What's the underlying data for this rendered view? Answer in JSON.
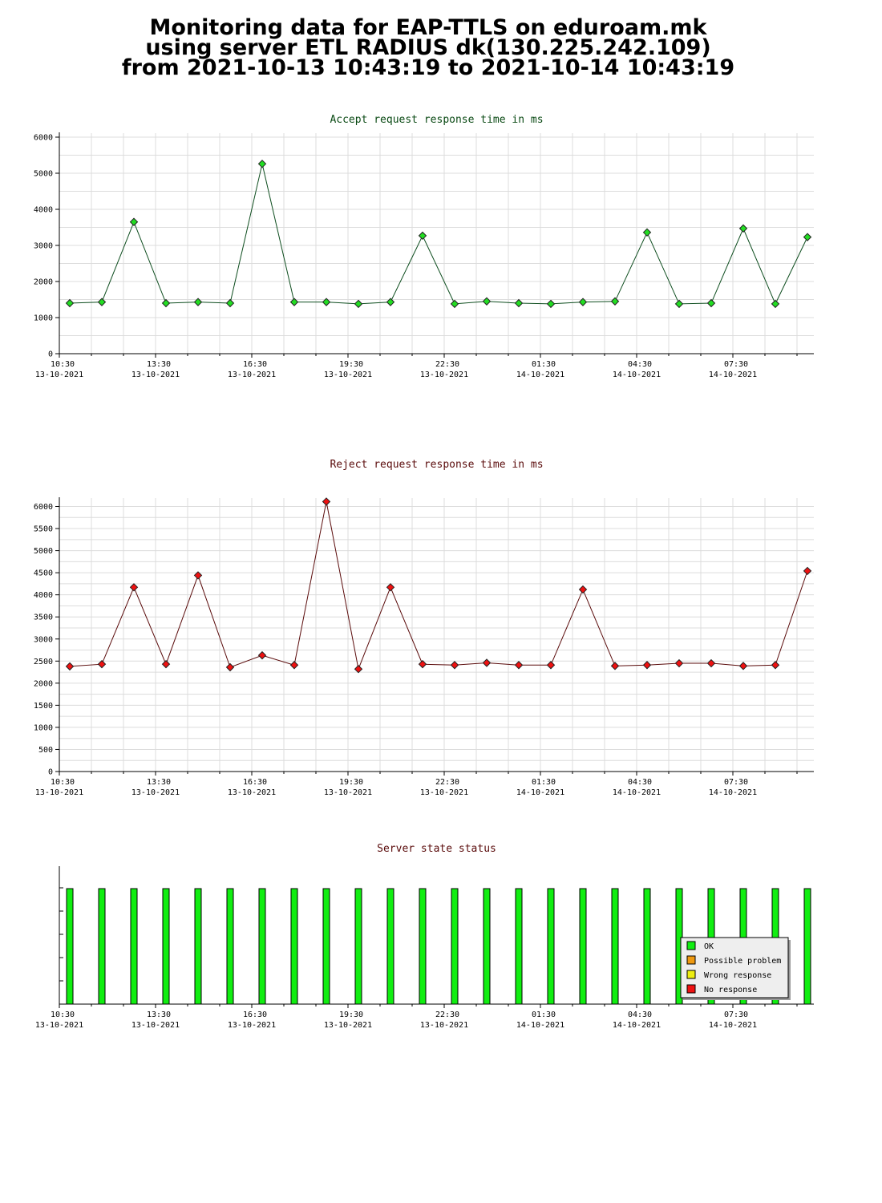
{
  "header": {
    "line1": "Monitoring data for EAP-TTLS on eduroam.mk",
    "line2": "using server ETL RADIUS dk(130.225.242.109)",
    "line3": "from 2021-10-13 10:43:19 to 2021-10-14 10:43:19"
  },
  "colors": {
    "accept_line": "#0d4d1e",
    "accept_marker": "#22dd22",
    "accept_title": "#0a4a14",
    "reject_line": "#5a0b0b",
    "reject_marker": "#ee1111",
    "reject_title": "#5a0b0b",
    "status_ok": "#11ee11",
    "possible_problem": "#ee9911",
    "wrong_response": "#eeee11",
    "no_response": "#ee1111"
  },
  "x_ticks": [
    {
      "time": "10:30",
      "date": "13-10-2021"
    },
    {
      "time": "13:30",
      "date": "13-10-2021"
    },
    {
      "time": "16:30",
      "date": "13-10-2021"
    },
    {
      "time": "19:30",
      "date": "13-10-2021"
    },
    {
      "time": "22:30",
      "date": "13-10-2021"
    },
    {
      "time": "01:30",
      "date": "14-10-2021"
    },
    {
      "time": "04:30",
      "date": "14-10-2021"
    },
    {
      "time": "07:30",
      "date": "14-10-2021"
    }
  ],
  "chart_data": [
    {
      "type": "line",
      "title": "Accept request response time in ms",
      "x": [
        "10:43",
        "11:43",
        "12:43",
        "13:43",
        "14:43",
        "15:43",
        "16:43",
        "17:43",
        "18:43",
        "19:43",
        "20:43",
        "21:43",
        "22:43",
        "23:43",
        "00:43",
        "01:43",
        "02:43",
        "03:43",
        "04:43",
        "05:43",
        "06:43",
        "07:43",
        "08:43",
        "09:43"
      ],
      "values": [
        1400,
        1430,
        3650,
        1400,
        1430,
        1400,
        5260,
        1430,
        1430,
        1380,
        1430,
        3270,
        1380,
        1450,
        1400,
        1380,
        1430,
        1450,
        3360,
        1380,
        1400,
        3470,
        1380,
        3230
      ],
      "ylim": [
        0,
        6000
      ],
      "yticks": [
        0,
        1000,
        2000,
        3000,
        4000,
        5000,
        6000
      ],
      "grid": true
    },
    {
      "type": "line",
      "title": "Reject request response time in ms",
      "x": [
        "10:43",
        "11:43",
        "12:43",
        "13:43",
        "14:43",
        "15:43",
        "16:43",
        "17:43",
        "18:43",
        "19:43",
        "20:43",
        "21:43",
        "22:43",
        "23:43",
        "00:43",
        "01:43",
        "02:43",
        "03:43",
        "04:43",
        "05:43",
        "06:43",
        "07:43",
        "08:43",
        "09:43"
      ],
      "values": [
        2380,
        2430,
        4170,
        2430,
        4440,
        2360,
        2630,
        2410,
        6110,
        2320,
        4170,
        2430,
        2410,
        2460,
        2410,
        2410,
        4120,
        2390,
        2410,
        2450,
        2450,
        2390,
        2410,
        4540
      ],
      "ylim": [
        0,
        6100
      ],
      "yticks": [
        0,
        500,
        1000,
        1500,
        2000,
        2500,
        3000,
        3500,
        4000,
        4500,
        5000,
        5500,
        6000
      ],
      "grid": true
    },
    {
      "type": "bar",
      "title": "Server state status",
      "x": [
        "10:43",
        "11:43",
        "12:43",
        "13:43",
        "14:43",
        "15:43",
        "16:43",
        "17:43",
        "18:43",
        "19:43",
        "20:43",
        "21:43",
        "22:43",
        "23:43",
        "00:43",
        "01:43",
        "02:43",
        "03:43",
        "04:43",
        "05:43",
        "06:43",
        "07:43",
        "08:43",
        "09:43"
      ],
      "values": [
        "OK",
        "OK",
        "OK",
        "OK",
        "OK",
        "OK",
        "OK",
        "OK",
        "OK",
        "OK",
        "OK",
        "OK",
        "OK",
        "OK",
        "OK",
        "OK",
        "OK",
        "OK",
        "OK",
        "OK",
        "OK",
        "OK",
        "OK",
        "OK"
      ],
      "legend": [
        "OK",
        "Possible problem",
        "Wrong response",
        "No response"
      ],
      "legend_position": "bottom-right"
    }
  ]
}
